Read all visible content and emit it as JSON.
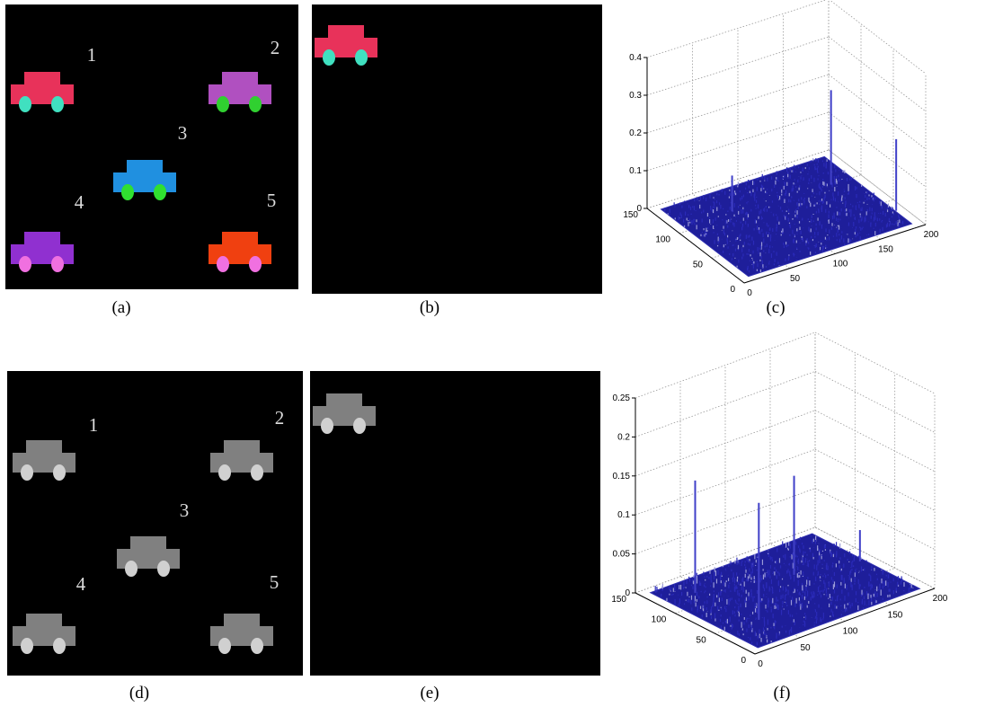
{
  "panel_a": {
    "caption": "(a)",
    "numbers": [
      "1",
      "2",
      "3",
      "4",
      "5"
    ]
  },
  "panel_b": {
    "caption": "(b)"
  },
  "panel_c": {
    "caption": "(c)",
    "xlim": [
      0,
      200
    ],
    "xticks": [
      0,
      50,
      100,
      150,
      200
    ],
    "ylim": [
      0,
      150
    ],
    "yticks": [
      0,
      50,
      100,
      150
    ],
    "zlim": [
      0,
      0.4
    ],
    "zticks": [
      0,
      0.1,
      0.2,
      0.3,
      0.4
    ],
    "peaks": {
      "x": [
        167,
        191,
        63
      ],
      "y": [
        100,
        33,
        107
      ],
      "z": [
        0.25,
        0.19,
        0.095
      ]
    }
  },
  "panel_d": {
    "caption": "(d)",
    "numbers": [
      "1",
      "2",
      "3",
      "4",
      "5"
    ]
  },
  "panel_e": {
    "caption": "(e)"
  },
  "panel_f": {
    "caption": "(f)",
    "xlim": [
      0,
      200
    ],
    "xticks": [
      0,
      50,
      100,
      150,
      200
    ],
    "ylim": [
      0,
      150
    ],
    "yticks": [
      0,
      50,
      100,
      150
    ],
    "zlim": [
      0,
      0.25
    ],
    "zticks": [
      0,
      0.05,
      0.1,
      0.15,
      0.2,
      0.25
    ],
    "peaks": {
      "x": [
        39,
        46,
        126,
        186
      ],
      "y": [
        119,
        47,
        93,
        78
      ],
      "z": [
        0.144,
        0.15,
        0.127,
        0.04
      ]
    }
  }
}
